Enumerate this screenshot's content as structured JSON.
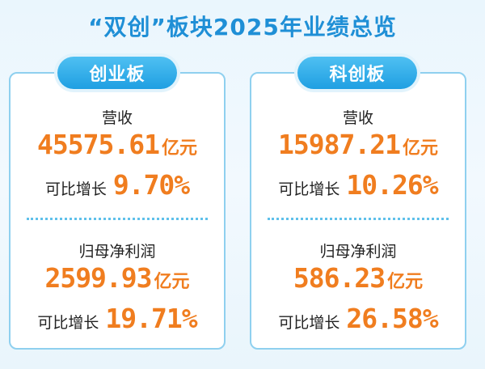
{
  "title": "“双创”板块2025年业绩总览",
  "panels": [
    {
      "name": "创业板",
      "revenue_label": "营收",
      "revenue_value": "45575.61",
      "revenue_unit": "亿元",
      "revenue_growth_label": "可比增长",
      "revenue_growth": "9.70%",
      "profit_label": "归母净利润",
      "profit_value": "2599.93",
      "profit_unit": "亿元",
      "profit_growth_label": "可比增长",
      "profit_growth": "19.71%"
    },
    {
      "name": "科创板",
      "revenue_label": "营收",
      "revenue_value": "15987.21",
      "revenue_unit": "亿元",
      "revenue_growth_label": "可比增长",
      "revenue_growth": "10.26%",
      "profit_label": "归母净利润",
      "profit_value": "586.23",
      "profit_unit": "亿元",
      "profit_growth_label": "可比增长",
      "profit_growth": "26.58%"
    }
  ],
  "colors": {
    "title": "#1f8fd6",
    "accent": "#f07d1f",
    "pill": "#1f9fe2",
    "border": "#8fd0ef",
    "divider": "#5fc0ea"
  }
}
